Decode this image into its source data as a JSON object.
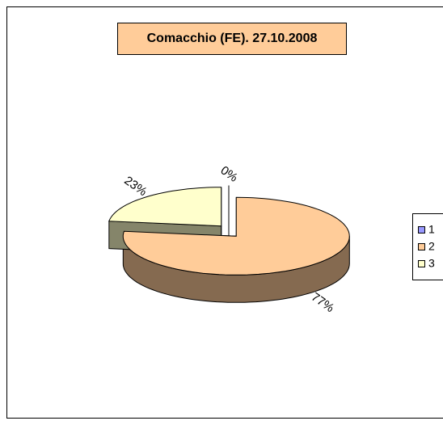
{
  "chart_data": {
    "type": "pie3d",
    "title": "Comacchio (FE). 27.10.2008",
    "categories": [
      "1",
      "2",
      "3"
    ],
    "values": [
      0,
      77,
      23
    ],
    "value_labels": [
      "0%",
      "77%",
      "23%"
    ],
    "colors": [
      "#9999ff",
      "#ffcc99",
      "#ffffcc"
    ],
    "legend": "right"
  }
}
